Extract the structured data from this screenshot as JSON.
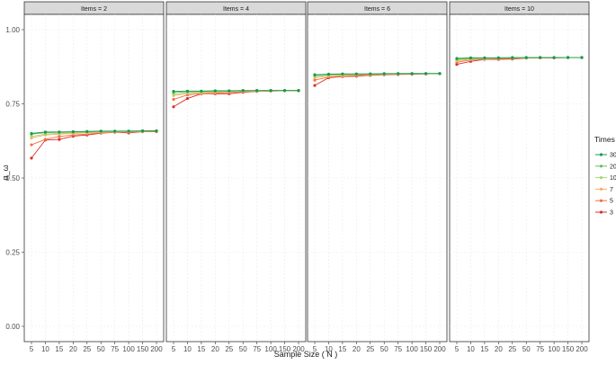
{
  "chart_data": {
    "type": "line",
    "xlabel": "Sample Size ( N )",
    "ylabel": "α_ω",
    "ylim": [
      0.0,
      1.0
    ],
    "yticks": [
      "0.00",
      "0.25",
      "0.50",
      "0.75",
      "1.00"
    ],
    "yticks_values": [
      0,
      0.25,
      0.5,
      0.75,
      1.0
    ],
    "categories": [
      "5",
      "10",
      "15",
      "20",
      "25",
      "50",
      "75",
      "100",
      "150",
      "200"
    ],
    "legend": {
      "title": "Times",
      "placement": "right",
      "entries": [
        "30",
        "20",
        "10",
        "7",
        "5",
        "3"
      ]
    },
    "colors": {
      "30": "#1a9850",
      "20": "#66bd63",
      "10": "#a6d96a",
      "7": "#fdae61",
      "5": "#f46d43",
      "3": "#d73027"
    },
    "grid": true,
    "panels": [
      {
        "strip": "Items = 2",
        "series": [
          {
            "name": "30",
            "values": [
              0.65,
              0.655,
              0.655,
              0.656,
              0.657,
              0.658,
              0.658,
              0.658,
              0.659,
              0.659
            ]
          },
          {
            "name": "20",
            "values": [
              0.648,
              0.653,
              0.654,
              0.655,
              0.656,
              0.657,
              0.657,
              0.658,
              0.658,
              0.659
            ]
          },
          {
            "name": "10",
            "values": [
              0.64,
              0.648,
              0.651,
              0.653,
              0.654,
              0.656,
              0.657,
              0.657,
              0.658,
              0.658
            ]
          },
          {
            "name": "7",
            "values": [
              0.635,
              0.645,
              0.648,
              0.65,
              0.652,
              0.654,
              0.655,
              0.656,
              0.657,
              0.658
            ]
          },
          {
            "name": "5",
            "values": [
              0.612,
              0.63,
              0.64,
              0.645,
              0.648,
              0.652,
              0.654,
              0.655,
              0.656,
              0.657
            ]
          },
          {
            "name": "3",
            "values": [
              0.567,
              0.628,
              0.63,
              0.641,
              0.645,
              0.651,
              0.654,
              0.652,
              0.656,
              0.656
            ]
          }
        ]
      },
      {
        "strip": "Items = 4",
        "series": [
          {
            "name": "30",
            "values": [
              0.792,
              0.793,
              0.793,
              0.794,
              0.794,
              0.795,
              0.795,
              0.795,
              0.795,
              0.795
            ]
          },
          {
            "name": "20",
            "values": [
              0.788,
              0.791,
              0.792,
              0.793,
              0.793,
              0.794,
              0.794,
              0.795,
              0.795,
              0.795
            ]
          },
          {
            "name": "10",
            "values": [
              0.782,
              0.787,
              0.789,
              0.791,
              0.792,
              0.793,
              0.794,
              0.794,
              0.795,
              0.795
            ]
          },
          {
            "name": "7",
            "values": [
              0.778,
              0.785,
              0.787,
              0.789,
              0.79,
              0.792,
              0.793,
              0.794,
              0.794,
              0.795
            ]
          },
          {
            "name": "5",
            "values": [
              0.765,
              0.78,
              0.784,
              0.786,
              0.788,
              0.791,
              0.792,
              0.793,
              0.794,
              0.794
            ]
          },
          {
            "name": "3",
            "values": [
              0.74,
              0.768,
              0.784,
              0.784,
              0.784,
              0.789,
              0.792,
              0.793,
              0.794,
              0.794
            ]
          }
        ]
      },
      {
        "strip": "Items = 6",
        "series": [
          {
            "name": "30",
            "values": [
              0.848,
              0.85,
              0.851,
              0.851,
              0.851,
              0.852,
              0.852,
              0.852,
              0.852,
              0.852
            ]
          },
          {
            "name": "20",
            "values": [
              0.846,
              0.849,
              0.85,
              0.85,
              0.851,
              0.851,
              0.852,
              0.852,
              0.852,
              0.852
            ]
          },
          {
            "name": "10",
            "values": [
              0.842,
              0.846,
              0.848,
              0.849,
              0.85,
              0.851,
              0.851,
              0.852,
              0.852,
              0.852
            ]
          },
          {
            "name": "7",
            "values": [
              0.838,
              0.844,
              0.846,
              0.848,
              0.849,
              0.85,
              0.851,
              0.851,
              0.852,
              0.852
            ]
          },
          {
            "name": "5",
            "values": [
              0.83,
              0.84,
              0.843,
              0.845,
              0.847,
              0.849,
              0.85,
              0.851,
              0.851,
              0.852
            ]
          },
          {
            "name": "3",
            "values": [
              0.812,
              0.838,
              0.842,
              0.843,
              0.846,
              0.848,
              0.849,
              0.85,
              0.851,
              0.852
            ]
          }
        ]
      },
      {
        "strip": "Items = 10",
        "series": [
          {
            "name": "30",
            "values": [
              0.903,
              0.905,
              0.905,
              0.905,
              0.906,
              0.906,
              0.906,
              0.906,
              0.906,
              0.906
            ]
          },
          {
            "name": "20",
            "values": [
              0.901,
              0.904,
              0.904,
              0.905,
              0.905,
              0.906,
              0.906,
              0.906,
              0.906,
              0.906
            ]
          },
          {
            "name": "10",
            "values": [
              0.898,
              0.902,
              0.903,
              0.904,
              0.905,
              0.905,
              0.906,
              0.906,
              0.906,
              0.906
            ]
          },
          {
            "name": "7",
            "values": [
              0.895,
              0.9,
              0.902,
              0.903,
              0.904,
              0.905,
              0.905,
              0.906,
              0.906,
              0.906
            ]
          },
          {
            "name": "5",
            "values": [
              0.89,
              0.898,
              0.901,
              0.902,
              0.903,
              0.905,
              0.905,
              0.905,
              0.906,
              0.906
            ]
          },
          {
            "name": "3",
            "values": [
              0.883,
              0.893,
              0.9,
              0.9,
              0.901,
              0.904,
              0.905,
              0.905,
              0.906,
              0.906
            ]
          }
        ]
      }
    ]
  }
}
